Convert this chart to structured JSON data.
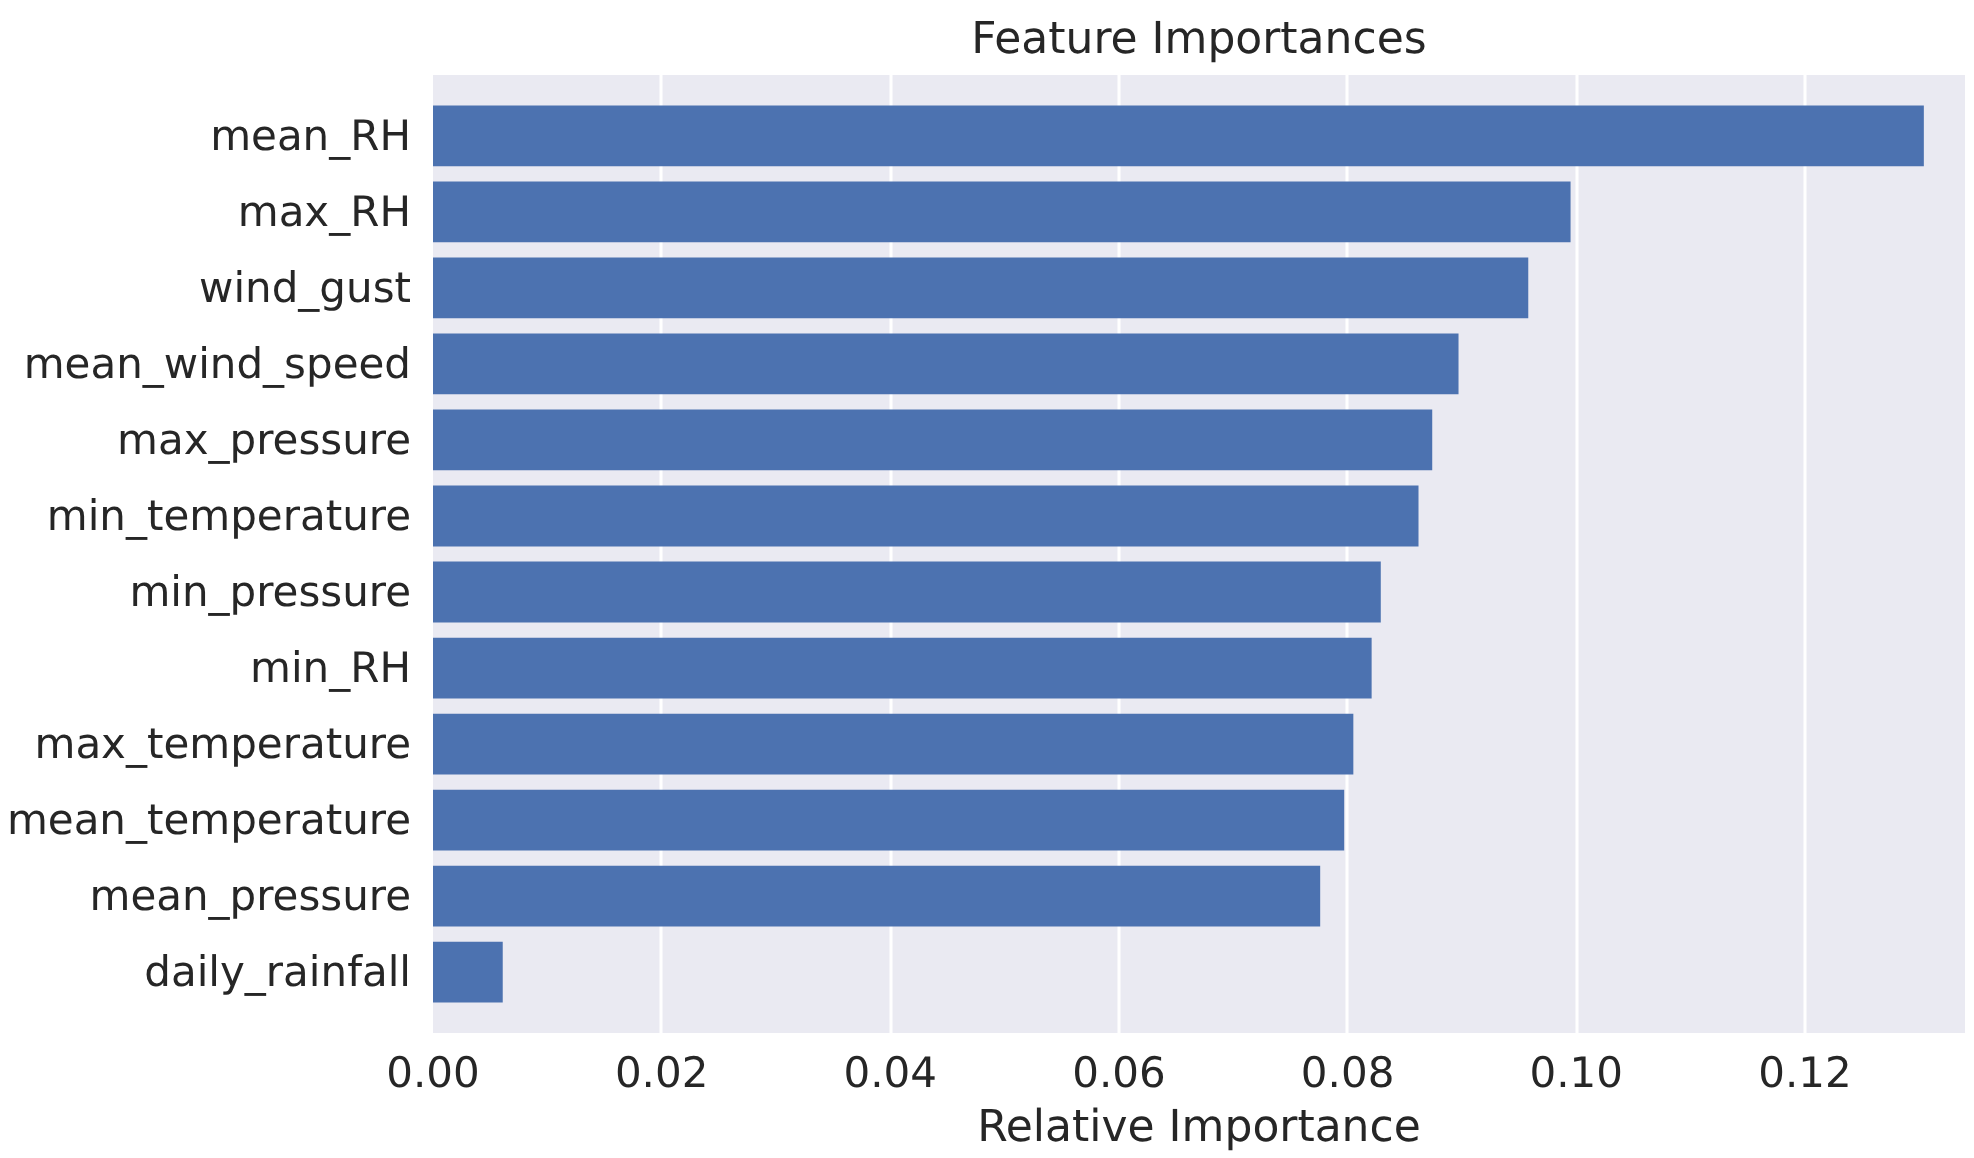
{
  "chart_data": {
    "type": "bar",
    "orientation": "horizontal",
    "title": "Feature Importances",
    "xlabel": "Relative Importance",
    "categories": [
      "mean_RH",
      "max_RH",
      "wind_gust",
      "mean_wind_speed",
      "max_pressure",
      "min_temperature",
      "min_pressure",
      "min_RH",
      "max_temperature",
      "mean_temperature",
      "mean_pressure",
      "daily_rainfall"
    ],
    "values": [
      0.1304,
      0.0995,
      0.0958,
      0.0897,
      0.0874,
      0.0862,
      0.0829,
      0.0821,
      0.0805,
      0.0797,
      0.0776,
      0.0061
    ],
    "color": "#4c72b0",
    "xlim": [
      0,
      0.134
    ],
    "xticks": [
      {
        "value": 0,
        "label": "0.00"
      },
      0.02,
      0.04,
      0.06,
      0.08,
      {
        "value": 0.1,
        "label": "0.10"
      },
      0.12
    ],
    "grid": "x"
  }
}
